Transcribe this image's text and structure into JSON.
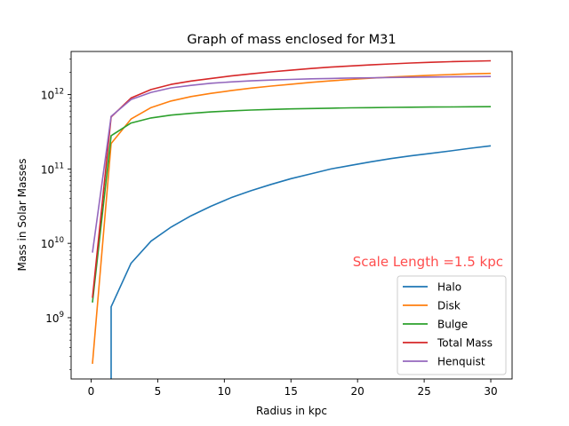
{
  "chart_data": {
    "type": "line",
    "title": "Graph of mass enclosed for M31",
    "xlabel": "Radius in kpc",
    "ylabel": "Mass in Solar Masses",
    "xlim": [
      -1.5,
      31.6
    ],
    "ylim": [
      150000000.0,
      3800000000000.0
    ],
    "yscale": "log",
    "grid": false,
    "legend_position": "lower-right",
    "xticks": [
      0,
      5,
      10,
      15,
      20,
      25,
      30
    ],
    "xtick_labels": [
      "0",
      "5",
      "10",
      "15",
      "20",
      "25",
      "30"
    ],
    "yticks": [
      1000000000.0,
      10000000000.0,
      100000000000.0,
      1000000000000.0
    ],
    "ytick_labels": [
      {
        "base": "10",
        "exp": "9"
      },
      {
        "base": "10",
        "exp": "10"
      },
      {
        "base": "10",
        "exp": "11"
      },
      {
        "base": "10",
        "exp": "12"
      }
    ],
    "annotation": {
      "text": "Scale Length =1.5 kpc",
      "color": "#ff4d4d"
    },
    "x": [
      0.1,
      1.5,
      3.0,
      4.5,
      6.0,
      7.5,
      9.0,
      10.5,
      12.0,
      13.5,
      15.0,
      16.5,
      18.0,
      19.5,
      21.0,
      22.5,
      24.0,
      25.5,
      27.0,
      28.5,
      30.0
    ],
    "series": [
      {
        "name": "Halo",
        "color": "#1f77b4",
        "values": [
          null,
          1400000000.0,
          5400000000.0,
          10700000000.0,
          16500000000.0,
          23500000000.0,
          31500000000.0,
          41000000000.0,
          51000000000.0,
          62000000000.0,
          74000000000.0,
          86000000000.0,
          100000000000.0,
          112000000000.0,
          125000000000.0,
          138000000000.0,
          150000000000.0,
          162000000000.0,
          175000000000.0,
          190000000000.0,
          205000000000.0
        ],
        "drop_to_floor_at": 1.5
      },
      {
        "name": "Disk",
        "color": "#ff7f0e",
        "values": [
          240000000.0,
          220000000000.0,
          470000000000.0,
          670000000000.0,
          820000000000.0,
          940000000000.0,
          1040000000000.0,
          1130000000000.0,
          1220000000000.0,
          1300000000000.0,
          1380000000000.0,
          1460000000000.0,
          1530000000000.0,
          1600000000000.0,
          1660000000000.0,
          1720000000000.0,
          1770000000000.0,
          1820000000000.0,
          1860000000000.0,
          1900000000000.0,
          1930000000000.0
        ]
      },
      {
        "name": "Bulge",
        "color": "#2ca02c",
        "values": [
          1600000000.0,
          280000000000.0,
          415000000000.0,
          485000000000.0,
          530000000000.0,
          560000000000.0,
          585000000000.0,
          605000000000.0,
          620000000000.0,
          632000000000.0,
          642000000000.0,
          650000000000.0,
          657000000000.0,
          663000000000.0,
          668000000000.0,
          672000000000.0,
          676000000000.0,
          680000000000.0,
          683000000000.0,
          686000000000.0,
          688000000000.0
        ]
      },
      {
        "name": "Total Mass",
        "color": "#d62728",
        "values": [
          1850000000.0,
          500000000000.0,
          900000000000.0,
          1170000000000.0,
          1370000000000.0,
          1520000000000.0,
          1650000000000.0,
          1780000000000.0,
          1900000000000.0,
          2020000000000.0,
          2130000000000.0,
          2240000000000.0,
          2340000000000.0,
          2430000000000.0,
          2510000000000.0,
          2590000000000.0,
          2660000000000.0,
          2720000000000.0,
          2770000000000.0,
          2810000000000.0,
          2850000000000.0
        ]
      },
      {
        "name": "Henquist",
        "color": "#9467bd",
        "values": [
          7500000000.0,
          510000000000.0,
          860000000000.0,
          1070000000000.0,
          1230000000000.0,
          1330000000000.0,
          1420000000000.0,
          1480000000000.0,
          1530000000000.0,
          1570000000000.0,
          1600000000000.0,
          1630000000000.0,
          1650000000000.0,
          1670000000000.0,
          1680000000000.0,
          1700000000000.0,
          1710000000000.0,
          1720000000000.0,
          1730000000000.0,
          1740000000000.0,
          1750000000000.0
        ]
      }
    ]
  }
}
